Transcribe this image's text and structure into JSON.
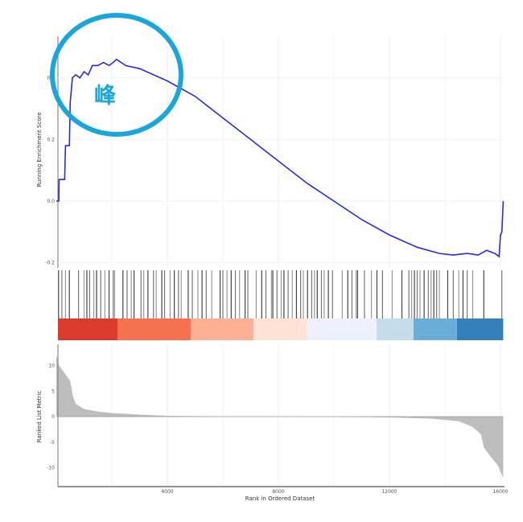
{
  "chart_data": [
    {
      "type": "line",
      "panel": "running-enrichment-score",
      "ylabel": "Running Enrichment Score",
      "ylim": [
        -0.22,
        0.5
      ],
      "yticks": [
        {
          "v": 0.4,
          "label": "0.4"
        },
        {
          "v": 0.2,
          "label": "0.2"
        },
        {
          "v": 0.0,
          "label": "0.0"
        },
        {
          "v": -0.2,
          "label": "-0.2"
        }
      ],
      "line_color": "#2b2bd9",
      "grid": true,
      "points": [
        [
          0,
          0
        ],
        [
          90,
          0
        ],
        [
          100,
          0.07
        ],
        [
          300,
          0.07
        ],
        [
          330,
          0.18
        ],
        [
          470,
          0.18
        ],
        [
          500,
          0.32
        ],
        [
          580,
          0.4
        ],
        [
          700,
          0.41
        ],
        [
          850,
          0.4
        ],
        [
          1000,
          0.42
        ],
        [
          1150,
          0.41
        ],
        [
          1300,
          0.44
        ],
        [
          1500,
          0.44
        ],
        [
          1700,
          0.45
        ],
        [
          1900,
          0.44
        ],
        [
          2050,
          0.45
        ],
        [
          2170,
          0.46
        ],
        [
          2500,
          0.44
        ],
        [
          3000,
          0.43
        ],
        [
          4000,
          0.39
        ],
        [
          5000,
          0.34
        ],
        [
          6000,
          0.27
        ],
        [
          7000,
          0.2
        ],
        [
          8000,
          0.13
        ],
        [
          9000,
          0.06
        ],
        [
          10000,
          0.0
        ],
        [
          11000,
          -0.06
        ],
        [
          12000,
          -0.11
        ],
        [
          13000,
          -0.15
        ],
        [
          13800,
          -0.17
        ],
        [
          14300,
          -0.175
        ],
        [
          14800,
          -0.17
        ],
        [
          15200,
          -0.175
        ],
        [
          15500,
          -0.16
        ],
        [
          15800,
          -0.17
        ],
        [
          15950,
          -0.18
        ],
        [
          16000,
          -0.11
        ],
        [
          16050,
          -0.1
        ],
        [
          16100,
          0.0
        ]
      ]
    },
    {
      "type": "barcode",
      "panel": "gene-set-hits",
      "hits": [
        80,
        200,
        330,
        470,
        800,
        1000,
        1100,
        1200,
        1350,
        1450,
        1600,
        1750,
        1900,
        2050,
        2100,
        2400,
        2550,
        2700,
        2800,
        3050,
        3150,
        3300,
        3500,
        3600,
        3800,
        3900,
        4100,
        4250,
        4400,
        4500,
        4750,
        4900,
        5100,
        5250,
        5400,
        5600,
        5900,
        6000,
        6150,
        6300,
        6450,
        6600,
        6800,
        6900,
        7200,
        7400,
        7550,
        7750,
        7800,
        7950,
        8100,
        8200,
        8350,
        8500,
        8650,
        8800,
        8900,
        9050,
        9200,
        9300,
        9400,
        9550,
        9650,
        9800,
        9950,
        10300,
        10500,
        10650,
        10800,
        10850,
        11100,
        11350,
        11550,
        11750,
        12100,
        12450,
        12700,
        12800,
        12900,
        13000,
        13100,
        13250,
        13400,
        13500,
        13600,
        13700,
        13800,
        14100,
        14300,
        14500,
        14650,
        14800,
        15000,
        15400,
        16050
      ],
      "color_strip": [
        {
          "from": 0,
          "to": 2200,
          "color": "#db3a2c"
        },
        {
          "from": 2200,
          "to": 4840,
          "color": "#f67150"
        },
        {
          "from": 4840,
          "to": 7100,
          "color": "#fcb094"
        },
        {
          "from": 7100,
          "to": 9040,
          "color": "#fee2d6"
        },
        {
          "from": 9040,
          "to": 11540,
          "color": "#eef0fb"
        },
        {
          "from": 11540,
          "to": 12870,
          "color": "#c4dcec"
        },
        {
          "from": 12870,
          "to": 14430,
          "color": "#6aaed8"
        },
        {
          "from": 14430,
          "to": 16100,
          "color": "#3380bd"
        }
      ]
    },
    {
      "type": "area",
      "panel": "ranked-list-metric",
      "ylabel": "Ranked List Metric",
      "xlabel": "Rank in Ordered Dataset",
      "xlim": [
        0,
        16100
      ],
      "ylim": [
        -14,
        14
      ],
      "xticks": [
        {
          "v": 4000,
          "label": "4000"
        },
        {
          "v": 8000,
          "label": "8000"
        },
        {
          "v": 12000,
          "label": "12000"
        },
        {
          "v": 16000,
          "label": "16000"
        }
      ],
      "yticks": [
        {
          "v": 10,
          "label": "10"
        },
        {
          "v": 5,
          "label": "5"
        },
        {
          "v": 0,
          "label": "0"
        },
        {
          "v": -5,
          "label": "-5"
        },
        {
          "v": -10,
          "label": "-10"
        }
      ],
      "fill_color": "#bdbdbd",
      "points": [
        [
          0,
          12
        ],
        [
          100,
          10
        ],
        [
          300,
          8.5
        ],
        [
          500,
          7
        ],
        [
          600,
          4
        ],
        [
          700,
          2.5
        ],
        [
          1000,
          1.5
        ],
        [
          1500,
          1
        ],
        [
          2000,
          0.7
        ],
        [
          3000,
          0.4
        ],
        [
          4000,
          0.15
        ],
        [
          6000,
          0.05
        ],
        [
          8000,
          0
        ],
        [
          10000,
          -0.05
        ],
        [
          12000,
          -0.15
        ],
        [
          13500,
          -0.4
        ],
        [
          14500,
          -0.9
        ],
        [
          15000,
          -2
        ],
        [
          15300,
          -3.5
        ],
        [
          15400,
          -6
        ],
        [
          15600,
          -7.5
        ],
        [
          15900,
          -9.5
        ],
        [
          16100,
          -12
        ]
      ]
    }
  ],
  "annotation": {
    "text": "峰",
    "color": "#1aa6dc"
  }
}
